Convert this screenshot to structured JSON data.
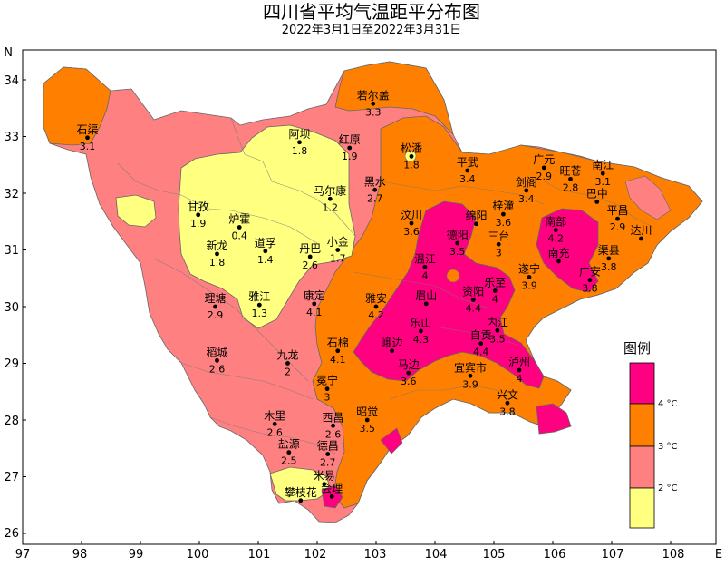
{
  "title": "四川省平均气温距平分布图",
  "subtitle": "2022年3月1日至2022年3月31日",
  "axes": {
    "x_ticks": [
      "97",
      "98",
      "99",
      "100",
      "101",
      "102",
      "103",
      "104",
      "105",
      "106",
      "107",
      "108"
    ],
    "y_ticks": [
      "34",
      "33",
      "32",
      "31",
      "30",
      "29",
      "28",
      "27",
      "26"
    ],
    "x_end_label": "E",
    "y_end_label": "N"
  },
  "legend": {
    "title": "图例",
    "labels": [
      "4 °C",
      "3 °C",
      "2 °C"
    ],
    "colors": [
      "#ff0080",
      "#ff8000",
      "#ff8080",
      "#ffff80"
    ]
  },
  "stations": [
    {
      "name": "若尔盖",
      "value": "3.3",
      "lon": 102.95,
      "lat": 33.58
    },
    {
      "name": "石渠",
      "value": "3.1",
      "lon": 98.1,
      "lat": 32.98
    },
    {
      "name": "阿坝",
      "value": "1.8",
      "lon": 101.7,
      "lat": 32.9
    },
    {
      "name": "红原",
      "value": "1.9",
      "lon": 102.55,
      "lat": 32.8
    },
    {
      "name": "松潘",
      "value": "1.8",
      "lon": 103.6,
      "lat": 32.65
    },
    {
      "name": "平武",
      "value": "3.4",
      "lon": 104.55,
      "lat": 32.4
    },
    {
      "name": "广元",
      "value": "2.9",
      "lon": 105.85,
      "lat": 32.45
    },
    {
      "name": "旺苍",
      "value": "2.8",
      "lon": 106.3,
      "lat": 32.25
    },
    {
      "name": "南江",
      "value": "3.1",
      "lon": 106.85,
      "lat": 32.35
    },
    {
      "name": "剑阁",
      "value": "3.4",
      "lon": 105.55,
      "lat": 32.05
    },
    {
      "name": "巴中",
      "value": "",
      "lon": 106.75,
      "lat": 31.85
    },
    {
      "name": "甘孜",
      "value": "1.9",
      "lon": 99.98,
      "lat": 31.62
    },
    {
      "name": "炉霍",
      "value": "0.4",
      "lon": 100.68,
      "lat": 31.4
    },
    {
      "name": "马尔康",
      "value": "1.2",
      "lon": 102.22,
      "lat": 31.9
    },
    {
      "name": "黑水",
      "value": "2.7",
      "lon": 102.98,
      "lat": 32.06
    },
    {
      "name": "汶川",
      "value": "3.6",
      "lon": 103.6,
      "lat": 31.47
    },
    {
      "name": "绵阳",
      "value": "",
      "lon": 104.7,
      "lat": 31.46
    },
    {
      "name": "梓潼",
      "value": "3.6",
      "lon": 105.16,
      "lat": 31.63
    },
    {
      "name": "平昌",
      "value": "2.9",
      "lon": 107.1,
      "lat": 31.55
    },
    {
      "name": "达川",
      "value": "",
      "lon": 107.5,
      "lat": 31.2
    },
    {
      "name": "新龙",
      "value": "1.8",
      "lon": 100.3,
      "lat": 30.93
    },
    {
      "name": "道孚",
      "value": "1.4",
      "lon": 101.12,
      "lat": 30.98
    },
    {
      "name": "丹巴",
      "value": "2.6",
      "lon": 101.88,
      "lat": 30.88
    },
    {
      "name": "小金",
      "value": "1.7",
      "lon": 102.35,
      "lat": 31.0
    },
    {
      "name": "德阳",
      "value": "3.5",
      "lon": 104.38,
      "lat": 31.12
    },
    {
      "name": "三台",
      "value": "3",
      "lon": 105.08,
      "lat": 31.1
    },
    {
      "name": "南部",
      "value": "4.2",
      "lon": 106.05,
      "lat": 31.35
    },
    {
      "name": "南充",
      "value": "",
      "lon": 106.1,
      "lat": 30.8
    },
    {
      "name": "渠县",
      "value": "3.8",
      "lon": 106.95,
      "lat": 30.85
    },
    {
      "name": "温江",
      "value": "4",
      "lon": 103.83,
      "lat": 30.7
    },
    {
      "name": "遂宁",
      "value": "3.9",
      "lon": 105.6,
      "lat": 30.52
    },
    {
      "name": "广安",
      "value": "3.8",
      "lon": 106.63,
      "lat": 30.47
    },
    {
      "name": "理塘",
      "value": "2.9",
      "lon": 100.27,
      "lat": 30.0
    },
    {
      "name": "雅江",
      "value": "1.3",
      "lon": 101.02,
      "lat": 30.03
    },
    {
      "name": "康定",
      "value": "4.1",
      "lon": 101.95,
      "lat": 30.05
    },
    {
      "name": "雅安",
      "value": "4.2",
      "lon": 103.0,
      "lat": 30.0
    },
    {
      "name": "眉山",
      "value": "",
      "lon": 103.85,
      "lat": 30.05
    },
    {
      "name": "资阳",
      "value": "4.4",
      "lon": 104.65,
      "lat": 30.12
    },
    {
      "name": "乐至",
      "value": "4",
      "lon": 105.02,
      "lat": 30.28
    },
    {
      "name": "内江",
      "value": "3.5",
      "lon": 105.06,
      "lat": 29.58
    },
    {
      "name": "乐山",
      "value": "4.3",
      "lon": 103.76,
      "lat": 29.57
    },
    {
      "name": "稻城",
      "value": "2.6",
      "lon": 100.3,
      "lat": 29.05
    },
    {
      "name": "九龙",
      "value": "2",
      "lon": 101.5,
      "lat": 29.0
    },
    {
      "name": "石棉",
      "value": "4.1",
      "lon": 102.35,
      "lat": 29.22
    },
    {
      "name": "峨边",
      "value": "",
      "lon": 103.27,
      "lat": 29.22
    },
    {
      "name": "马边",
      "value": "3.6",
      "lon": 103.55,
      "lat": 28.83
    },
    {
      "name": "自贡",
      "value": "4.4",
      "lon": 104.78,
      "lat": 29.35
    },
    {
      "name": "宜宾市",
      "value": "3.9",
      "lon": 104.6,
      "lat": 28.78
    },
    {
      "name": "泸州",
      "value": "4",
      "lon": 105.43,
      "lat": 28.88
    },
    {
      "name": "冕宁",
      "value": "3",
      "lon": 102.17,
      "lat": 28.55
    },
    {
      "name": "兴文",
      "value": "3.8",
      "lon": 105.23,
      "lat": 28.3
    },
    {
      "name": "木里",
      "value": "2.6",
      "lon": 101.28,
      "lat": 27.93
    },
    {
      "name": "昭觉",
      "value": "3.5",
      "lon": 102.85,
      "lat": 28.0
    },
    {
      "name": "西昌",
      "value": "2.6",
      "lon": 102.27,
      "lat": 27.9
    },
    {
      "name": "盐源",
      "value": "2.5",
      "lon": 101.52,
      "lat": 27.43
    },
    {
      "name": "德昌",
      "value": "2.7",
      "lon": 102.18,
      "lat": 27.4
    },
    {
      "name": "攀枝花",
      "value": "",
      "lon": 101.72,
      "lat": 26.58
    },
    {
      "name": "米易",
      "value": "",
      "lon": 102.12,
      "lat": 26.87
    },
    {
      "name": "会理",
      "value": "",
      "lon": 102.25,
      "lat": 26.65
    }
  ]
}
